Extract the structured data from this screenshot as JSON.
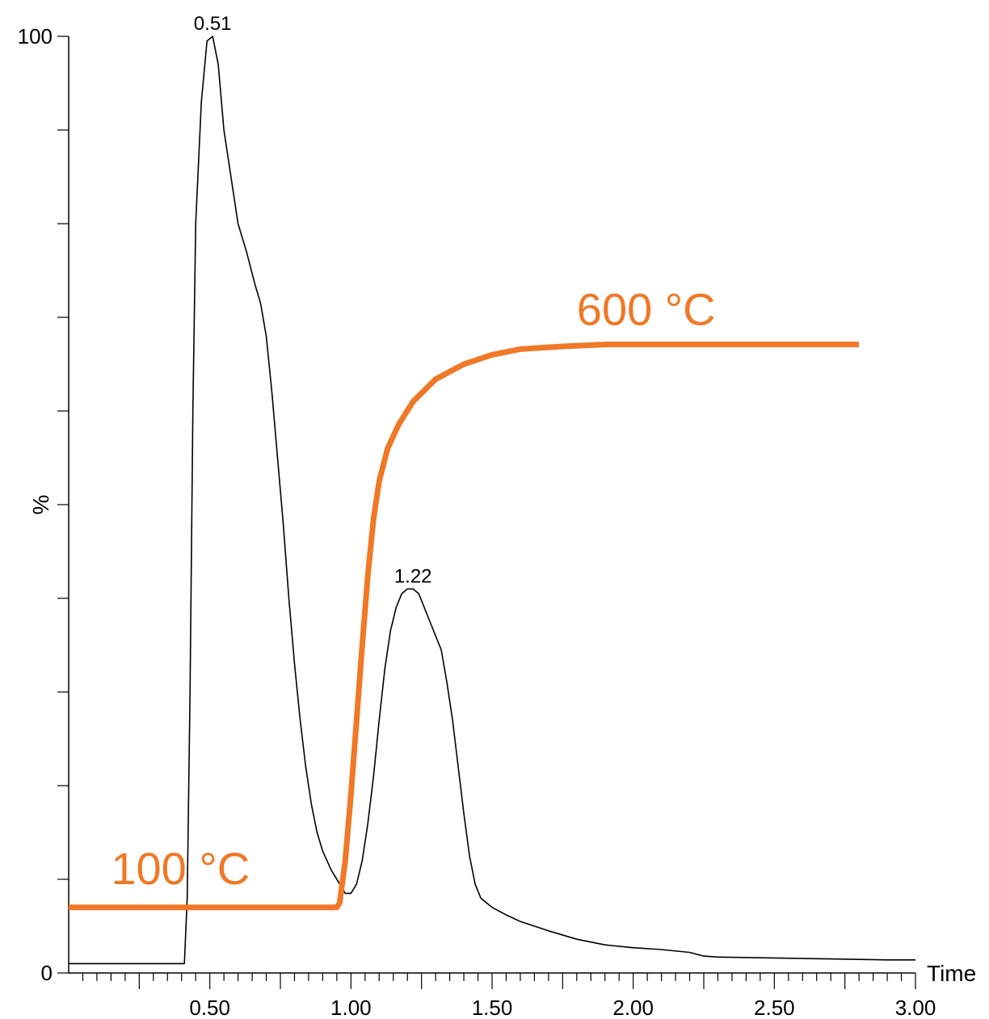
{
  "chart_data": {
    "type": "line",
    "title": "",
    "xlabel": "Time",
    "ylabel": "%",
    "xlim": [
      0,
      3.0
    ],
    "ylim": [
      0,
      100
    ],
    "grid": false,
    "x_ticks": [
      0.5,
      1.0,
      1.5,
      2.0,
      2.5,
      3.0
    ],
    "x_tick_labels": [
      "0.50",
      "1.00",
      "1.50",
      "2.00",
      "2.50",
      "3.00"
    ],
    "y_tick_labels": [
      {
        "value": 100,
        "label": "100"
      },
      {
        "value": 0,
        "label": "0"
      }
    ],
    "colors": {
      "signal": "#000000",
      "temperature": "#f07826"
    },
    "series": [
      {
        "points": [
          [
            0.0,
            1.0
          ],
          [
            0.2,
            1.0
          ],
          [
            0.4,
            1.0
          ],
          [
            0.41,
            1.0
          ],
          [
            0.42,
            8.0
          ],
          [
            0.43,
            30.0
          ],
          [
            0.44,
            60.0
          ],
          [
            0.45,
            80.0
          ],
          [
            0.47,
            93.0
          ],
          [
            0.49,
            99.5
          ],
          [
            0.51,
            100.0
          ],
          [
            0.53,
            97.0
          ],
          [
            0.55,
            90.0
          ],
          [
            0.58,
            84.0
          ],
          [
            0.6,
            80.0
          ],
          [
            0.63,
            77.0
          ],
          [
            0.66,
            73.5
          ],
          [
            0.68,
            71.5
          ],
          [
            0.7,
            68.0
          ],
          [
            0.72,
            62.0
          ],
          [
            0.74,
            55.0
          ],
          [
            0.76,
            48.0
          ],
          [
            0.78,
            40.0
          ],
          [
            0.8,
            33.0
          ],
          [
            0.82,
            27.0
          ],
          [
            0.84,
            22.0
          ],
          [
            0.86,
            18.0
          ],
          [
            0.88,
            15.0
          ],
          [
            0.9,
            13.0
          ],
          [
            0.93,
            11.0
          ],
          [
            0.96,
            9.5
          ],
          [
            0.98,
            8.5
          ],
          [
            1.0,
            8.5
          ],
          [
            1.02,
            9.5
          ],
          [
            1.04,
            12.0
          ],
          [
            1.06,
            16.0
          ],
          [
            1.08,
            21.0
          ],
          [
            1.1,
            27.0
          ],
          [
            1.12,
            32.5
          ],
          [
            1.14,
            36.5
          ],
          [
            1.16,
            39.0
          ],
          [
            1.18,
            40.5
          ],
          [
            1.2,
            41.0
          ],
          [
            1.22,
            41.0
          ],
          [
            1.24,
            40.5
          ],
          [
            1.26,
            39.0
          ],
          [
            1.28,
            37.5
          ],
          [
            1.3,
            36.0
          ],
          [
            1.32,
            34.5
          ],
          [
            1.34,
            31.0
          ],
          [
            1.36,
            27.0
          ],
          [
            1.38,
            22.0
          ],
          [
            1.4,
            17.0
          ],
          [
            1.42,
            12.5
          ],
          [
            1.44,
            9.5
          ],
          [
            1.46,
            8.0
          ],
          [
            1.5,
            7.0
          ],
          [
            1.55,
            6.2
          ],
          [
            1.6,
            5.5
          ],
          [
            1.7,
            4.5
          ],
          [
            1.8,
            3.6
          ],
          [
            1.9,
            3.0
          ],
          [
            2.0,
            2.7
          ],
          [
            2.1,
            2.5
          ],
          [
            2.2,
            2.2
          ],
          [
            2.25,
            1.8
          ],
          [
            2.3,
            1.7
          ],
          [
            2.5,
            1.6
          ],
          [
            2.7,
            1.5
          ],
          [
            2.9,
            1.4
          ],
          [
            3.0,
            1.4
          ]
        ]
      },
      {
        "points": [
          [
            0.0,
            7.0
          ],
          [
            0.45,
            7.0
          ],
          [
            0.95,
            7.0
          ],
          [
            0.96,
            7.5
          ],
          [
            0.98,
            12.0
          ],
          [
            1.0,
            19.0
          ],
          [
            1.02,
            27.0
          ],
          [
            1.04,
            35.0
          ],
          [
            1.06,
            42.5
          ],
          [
            1.08,
            48.5
          ],
          [
            1.1,
            52.5
          ],
          [
            1.13,
            56.0
          ],
          [
            1.17,
            58.6
          ],
          [
            1.22,
            61.0
          ],
          [
            1.3,
            63.4
          ],
          [
            1.4,
            65.0
          ],
          [
            1.5,
            66.0
          ],
          [
            1.6,
            66.6
          ],
          [
            1.75,
            66.9
          ],
          [
            1.9,
            67.1
          ],
          [
            2.1,
            67.1
          ],
          [
            2.4,
            67.1
          ],
          [
            2.8,
            67.1
          ]
        ]
      }
    ],
    "annotations": [
      {
        "x": 0.51,
        "y": 100.0,
        "text": "0.51"
      },
      {
        "x": 1.22,
        "y": 41.0,
        "text": "1.22"
      }
    ],
    "temperature_labels": [
      {
        "text": "100 °C",
        "x": 0.15,
        "y": 10.0
      },
      {
        "text": "600 °C",
        "x": 1.8,
        "y": 67.1
      }
    ]
  }
}
